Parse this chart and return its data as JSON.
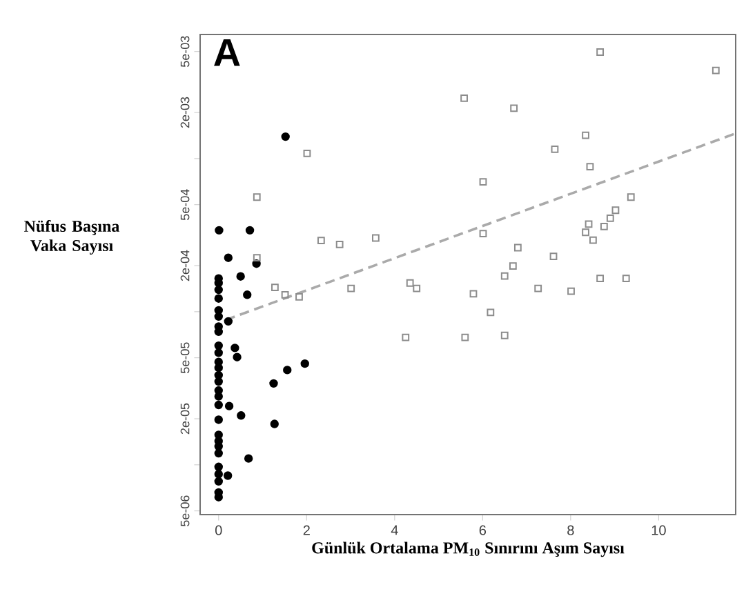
{
  "chart_data": {
    "type": "scatter",
    "xlabel": "Günlük Ortalama PM$_{10}$ Sınırını Aşım Sayısı",
    "ylabel": "Nüfus Başına Vaka Sayısı",
    "annotations": [
      "A"
    ],
    "log": "y",
    "grid": false,
    "xlim": [
      -0.42,
      11.75
    ],
    "ylim": [
      4.73e-06,
      0.00646
    ],
    "xticks": [
      0,
      2,
      4,
      6,
      8,
      10
    ],
    "yticks": [
      {
        "value": 5e-06,
        "label": "5e-06"
      },
      {
        "value": 1e-05,
        "label": null
      },
      {
        "value": 2e-05,
        "label": "2e-05"
      },
      {
        "value": 5e-05,
        "label": "5e-05"
      },
      {
        "value": 0.0001,
        "label": null
      },
      {
        "value": 0.0002,
        "label": "2e-04"
      },
      {
        "value": 0.0005,
        "label": "5e-04"
      },
      {
        "value": 0.001,
        "label": null
      },
      {
        "value": 0.002,
        "label": "2e-03"
      },
      {
        "value": 0.005,
        "label": "5e-03"
      }
    ],
    "series": [
      {
        "marker": "circle",
        "color": "#000000",
        "x": [
          1.52,
          0.01,
          0.71,
          0.22,
          0.86,
          0.5,
          0.65,
          0.22,
          0.37,
          0.42,
          1.25,
          1.56,
          1.96,
          0.24,
          0.51,
          1.27,
          0.68,
          0.21,
          0,
          0,
          0,
          0,
          0,
          0,
          0,
          0,
          0,
          0,
          0,
          0,
          0,
          0,
          0,
          0,
          0,
          0,
          0,
          0,
          0,
          0,
          0,
          0,
          0,
          0,
          0
        ],
        "values": [
          0.00139,
          0.00034,
          0.00034,
          0.000225,
          0.000206,
          0.00017,
          0.000129,
          8.65e-05,
          5.8e-05,
          5.05e-05,
          3.4e-05,
          4.16e-05,
          4.58e-05,
          2.42e-05,
          2.1e-05,
          1.85e-05,
          1.1e-05,
          8.5e-06,
          0.000165,
          0.000154,
          0.000139,
          0.000122,
          0.000102,
          9.3e-05,
          8e-05,
          7.4e-05,
          6e-05,
          5.4e-05,
          4.7e-05,
          4.3e-05,
          3.85e-05,
          3.5e-05,
          3.06e-05,
          2.8e-05,
          2.46e-05,
          1.97e-05,
          1.57e-05,
          1.43e-05,
          1.32e-05,
          1.19e-05,
          9.7e-06,
          8.7e-06,
          7.8e-06,
          6.6e-06,
          6.15e-06
        ]
      },
      {
        "marker": "square",
        "color": "#8c8c8c",
        "x": [
          8.67,
          11.3,
          5.58,
          6.71,
          8.34,
          7.64,
          8.44,
          6.01,
          9.37,
          9.02,
          8.9,
          8.76,
          8.41,
          8.34,
          8.51,
          6.01,
          6.8,
          7.61,
          6.69,
          6.5,
          8.67,
          9.26,
          7.26,
          8.01,
          5.79,
          6.18,
          4.35,
          4.5,
          3.01,
          2.75,
          3.57,
          4.25,
          5.6,
          6.5,
          2.01,
          0.87,
          0.87,
          1.28,
          1.51,
          1.83,
          2.33
        ],
        "values": [
          0.00496,
          0.00376,
          0.00248,
          0.00213,
          0.00142,
          0.00115,
          0.000885,
          0.000705,
          0.00056,
          0.00046,
          0.000408,
          0.00036,
          0.000373,
          0.00033,
          0.000293,
          0.000324,
          0.000262,
          0.00023,
          0.000199,
          0.000171,
          0.000165,
          0.000165,
          0.000142,
          0.000136,
          0.000131,
          9.9e-05,
          0.000154,
          0.000142,
          0.000142,
          0.000275,
          0.000303,
          6.8e-05,
          6.8e-05,
          7e-05,
          0.00108,
          0.00056,
          0.000225,
          0.000144,
          0.000129,
          0.000125,
          0.000292
        ]
      },
      {
        "type": "line",
        "line_style": "dashed",
        "color": "#aaaaaa",
        "x": [
          0.16,
          11.75
        ],
        "values": [
          8.83e-05,
          0.00146
        ]
      }
    ]
  }
}
